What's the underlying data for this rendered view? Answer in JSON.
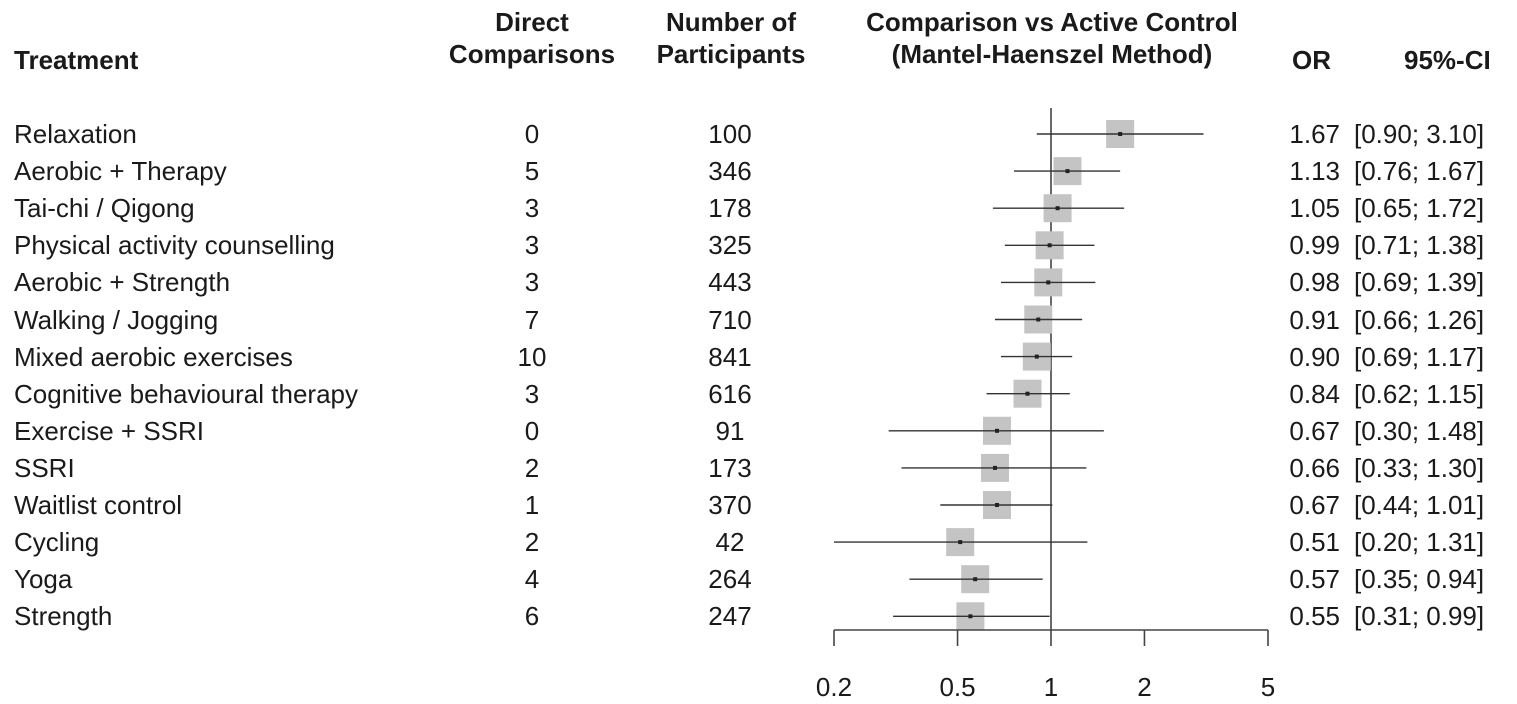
{
  "headers": {
    "treatment": "Treatment",
    "direct_line1": "Direct",
    "direct_line2": "Comparisons",
    "participants_line1": "Number of",
    "participants_line2": "Participants",
    "comparison_line1": "Comparison vs Active Control",
    "comparison_line2": "(Mantel-Haenszel Method)",
    "or": "OR",
    "ci": "95%-CI"
  },
  "rows": [
    {
      "name": "Relaxation",
      "direct": "0",
      "participants": "100",
      "or_text": "1.67",
      "ci_text": "[0.90; 3.10]"
    },
    {
      "name": "Aerobic + Therapy",
      "direct": "5",
      "participants": "346",
      "or_text": "1.13",
      "ci_text": "[0.76; 1.67]"
    },
    {
      "name": "Tai-chi / Qigong",
      "direct": "3",
      "participants": "178",
      "or_text": "1.05",
      "ci_text": "[0.65; 1.72]"
    },
    {
      "name": "Physical activity counselling",
      "direct": "3",
      "participants": "325",
      "or_text": "0.99",
      "ci_text": "[0.71; 1.38]"
    },
    {
      "name": "Aerobic + Strength",
      "direct": "3",
      "participants": "443",
      "or_text": "0.98",
      "ci_text": "[0.69; 1.39]"
    },
    {
      "name": "Walking / Jogging",
      "direct": "7",
      "participants": "710",
      "or_text": "0.91",
      "ci_text": "[0.66; 1.26]"
    },
    {
      "name": "Mixed aerobic exercises",
      "direct": "10",
      "participants": "841",
      "or_text": "0.90",
      "ci_text": "[0.69; 1.17]"
    },
    {
      "name": "Cognitive behavioural therapy",
      "direct": "3",
      "participants": "616",
      "or_text": "0.84",
      "ci_text": "[0.62; 1.15]"
    },
    {
      "name": "Exercise + SSRI",
      "direct": "0",
      "participants": "91",
      "or_text": "0.67",
      "ci_text": "[0.30; 1.48]"
    },
    {
      "name": "SSRI",
      "direct": "2",
      "participants": "173",
      "or_text": "0.66",
      "ci_text": "[0.33; 1.30]"
    },
    {
      "name": "Waitlist control",
      "direct": "1",
      "participants": "370",
      "or_text": "0.67",
      "ci_text": "[0.44; 1.01]"
    },
    {
      "name": "Cycling",
      "direct": "2",
      "participants": "42",
      "or_text": "0.51",
      "ci_text": "[0.20; 1.31]"
    },
    {
      "name": "Yoga",
      "direct": "4",
      "participants": "264",
      "or_text": "0.57",
      "ci_text": "[0.35; 0.94]"
    },
    {
      "name": "Strength",
      "direct": "6",
      "participants": "247",
      "or_text": "0.55",
      "ci_text": "[0.31; 0.99]"
    }
  ],
  "chart_data": {
    "type": "forest",
    "scale": "log",
    "xlim": [
      0.2,
      5
    ],
    "ticks": [
      0.2,
      0.5,
      1,
      2,
      5
    ],
    "tick_labels": [
      "0.2",
      "0.5",
      "1",
      "2",
      "5"
    ],
    "reference_line": 1,
    "categories": [
      "Relaxation",
      "Aerobic + Therapy",
      "Tai-chi / Qigong",
      "Physical activity counselling",
      "Aerobic + Strength",
      "Walking / Jogging",
      "Mixed aerobic exercises",
      "Cognitive behavioural therapy",
      "Exercise + SSRI",
      "SSRI",
      "Waitlist control",
      "Cycling",
      "Yoga",
      "Strength"
    ],
    "or": [
      1.67,
      1.13,
      1.05,
      0.99,
      0.98,
      0.91,
      0.9,
      0.84,
      0.67,
      0.66,
      0.67,
      0.51,
      0.57,
      0.55
    ],
    "ci_lower": [
      0.9,
      0.76,
      0.65,
      0.71,
      0.69,
      0.66,
      0.69,
      0.62,
      0.3,
      0.33,
      0.44,
      0.2,
      0.35,
      0.31
    ],
    "ci_upper": [
      3.1,
      1.67,
      1.72,
      1.38,
      1.39,
      1.26,
      1.17,
      1.15,
      1.48,
      1.3,
      1.01,
      1.31,
      0.94,
      0.99
    ],
    "colors": {
      "box": "#c4c4c4",
      "line": "#333333",
      "axis": "#444444"
    }
  }
}
